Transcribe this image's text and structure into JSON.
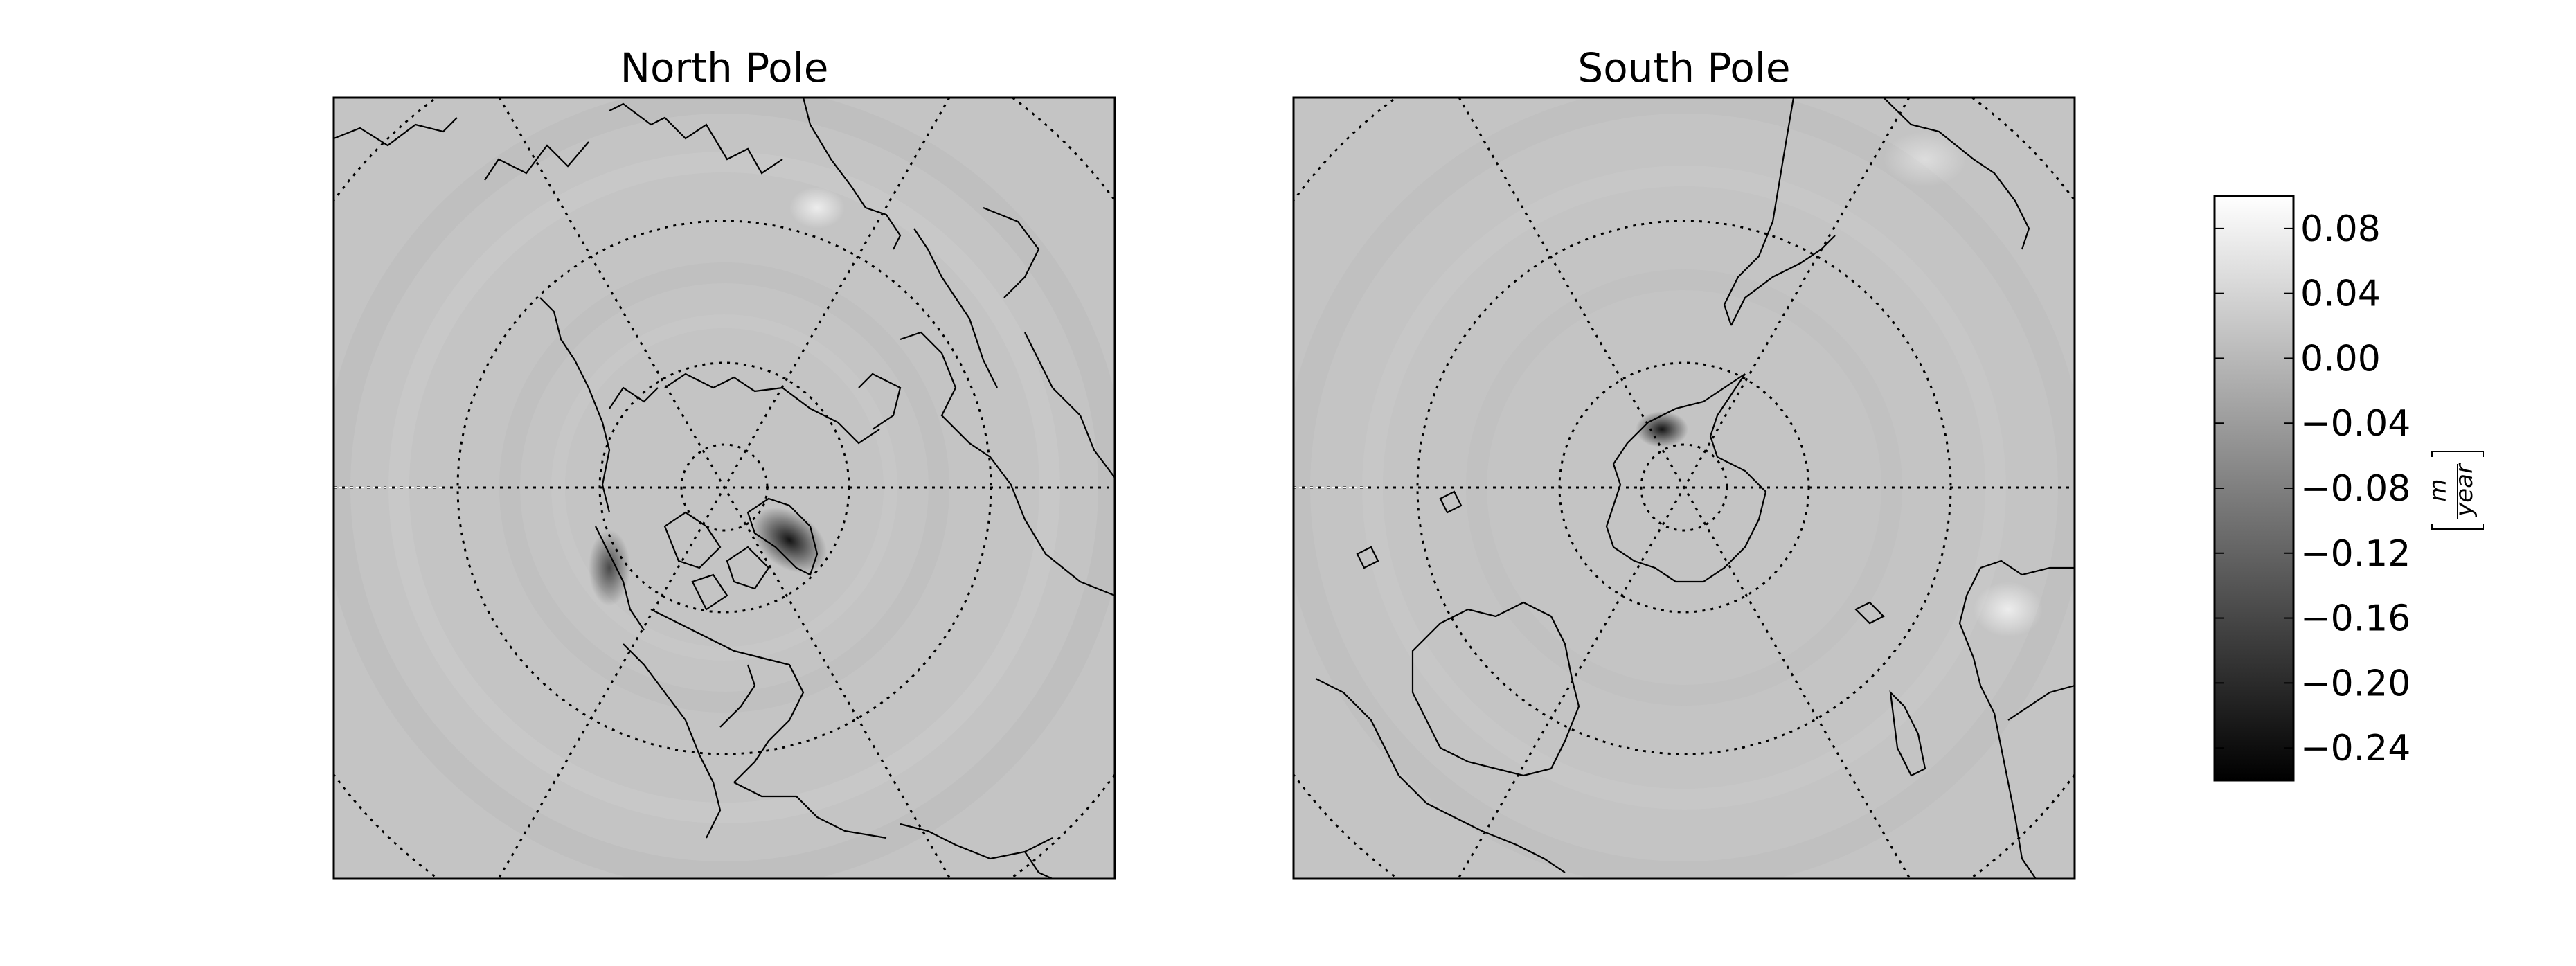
{
  "panels": [
    {
      "title": "North Pole"
    },
    {
      "title": "South Pole"
    }
  ],
  "colorbar": {
    "colormap": "grayscale",
    "vmin": -0.26,
    "vmax": 0.1,
    "ticks": [
      0.08,
      0.04,
      0.0,
      -0.04,
      -0.08,
      -0.12,
      -0.16,
      -0.2,
      -0.24
    ],
    "tick_labels": [
      "0.08",
      "0.04",
      "0.00",
      "−0.04",
      "−0.08",
      "−0.12",
      "−0.16",
      "−0.20",
      "−0.24"
    ],
    "unit_numerator": "m",
    "unit_denominator": "year"
  },
  "colors": {
    "background": "#ffffff",
    "map_fill": "#c4c4c4",
    "coastline": "#000000"
  }
}
